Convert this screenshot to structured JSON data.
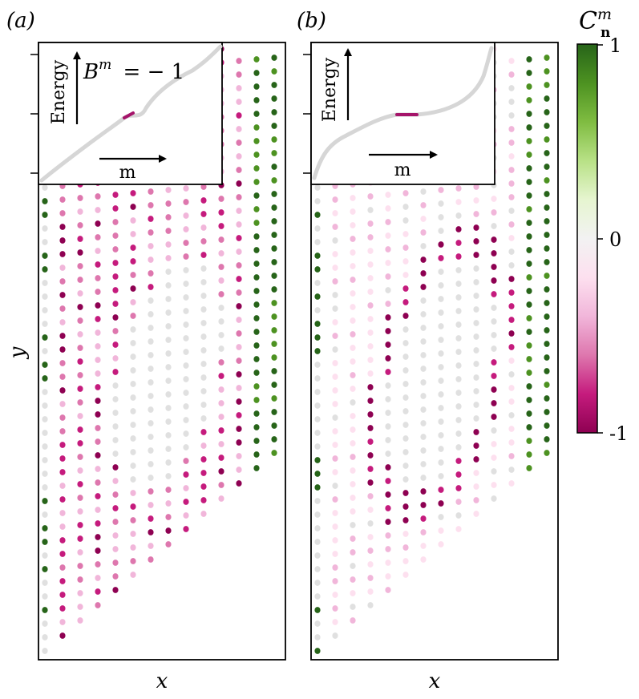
{
  "figure": {
    "panel_a_label": "(a)",
    "panel_b_label": "(b)",
    "xlabel": "x",
    "ylabel": "y"
  },
  "colorbar": {
    "symbol": "C",
    "superscript": "m",
    "subscript": "n",
    "ticks": [
      {
        "value": 1,
        "label": "1"
      },
      {
        "value": 0,
        "label": "0"
      },
      {
        "value": -1,
        "label": "-1"
      }
    ],
    "colors": [
      "#8e0152",
      "#c51b7d",
      "#de77ae",
      "#f1b6da",
      "#fde0ef",
      "#e0e0e0",
      "#e6f5d0",
      "#b8e186",
      "#7fbc41",
      "#4d9221",
      "#276419"
    ]
  },
  "inset": {
    "ylabel": "Energy",
    "xlabel": "m",
    "annotation_a": "− 1",
    "annotation_a_symbol": "B",
    "annotation_a_superscript": "m"
  },
  "chart_data": [
    {
      "type": "scatter",
      "panel": "a",
      "description_values": "local marker C_n^m per lattice site, range [-1, 1]",
      "bott_index": -1,
      "lattice": {
        "rows": 20,
        "cols": 14,
        "hole": true
      },
      "vlim": [
        -1,
        1
      ]
    },
    {
      "type": "scatter",
      "panel": "b",
      "description_values": "local marker C_n^m per lattice site, range [-1, 1]",
      "lattice": {
        "rows": 20,
        "cols": 14,
        "hole": true
      },
      "vlim": [
        -1,
        1
      ]
    }
  ]
}
